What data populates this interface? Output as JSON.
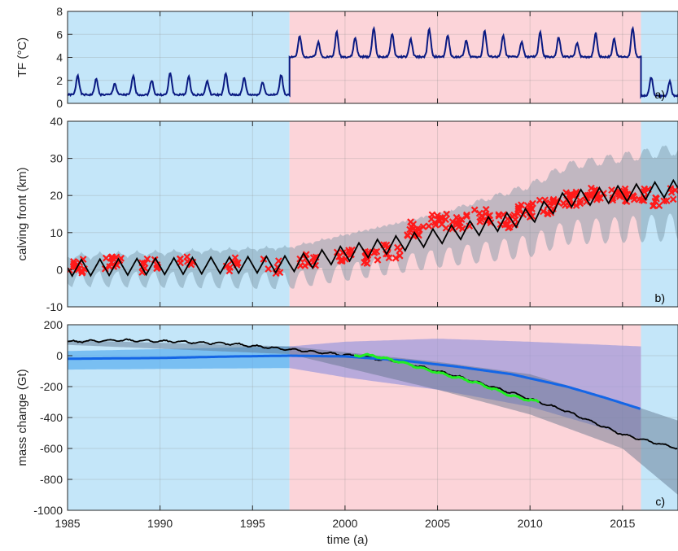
{
  "colors": {
    "blue_bg": "#c4e6f9",
    "red_bg": "#fcd4d9",
    "tf_line": "#0a1a82",
    "scatter": "#ff1a1a",
    "model_line": "#000000",
    "band_grey": "#6f8f9f",
    "blue_line": "#1466e6",
    "blue_band": "#5aaef0",
    "purple_band": "#9b98dc",
    "dark_band": "#5b6f88",
    "obs_green": "#22ee22"
  },
  "xaxis": {
    "label": "time (a)",
    "range": [
      1985,
      2018
    ],
    "ticks": [
      1985,
      1990,
      1995,
      2000,
      2005,
      2010,
      2015
    ],
    "tick_labels": [
      "1985",
      "1990",
      "1995",
      "2000",
      "2005",
      "2010",
      "2015"
    ]
  },
  "background_periods": [
    {
      "x0": 1985,
      "x1": 1997,
      "color_key": "blue_bg"
    },
    {
      "x0": 1997,
      "x1": 2016,
      "color_key": "red_bg"
    },
    {
      "x0": 2016,
      "x1": 2018,
      "color_key": "blue_bg"
    }
  ],
  "chart_data": [
    {
      "type": "line",
      "panel_label": "a)",
      "ylabel": "TF (°C)",
      "ylim": [
        0,
        8
      ],
      "yticks": [
        0,
        2,
        4,
        6,
        8
      ],
      "grid": true,
      "series": [
        {
          "role": "thermal forcing",
          "color_key": "tf_line",
          "segments": [
            {
              "x0": 1985,
              "x1": 1997,
              "base": 1.1,
              "amp": 1.1,
              "seed": 1
            },
            {
              "x0": 1997,
              "x1": 2016,
              "base": 4.4,
              "amp": 1.5,
              "seed": 2
            },
            {
              "x0": 2016,
              "x1": 2018,
              "base": 1.0,
              "amp": 1.2,
              "seed": 3
            }
          ]
        }
      ]
    },
    {
      "type": "line+scatter",
      "panel_label": "b)",
      "ylabel": "calving front (km)",
      "ylim": [
        -10,
        40
      ],
      "yticks": [
        -10,
        0,
        10,
        20,
        30,
        40
      ],
      "grid": true,
      "model_trend": [
        [
          1985,
          0.5
        ],
        [
          1997,
          1.5
        ],
        [
          2005,
          9
        ],
        [
          2010,
          14.5
        ],
        [
          2012,
          19
        ],
        [
          2016,
          21
        ],
        [
          2018,
          22
        ]
      ],
      "seasonal_amplitude": 2.2,
      "band_halfwidth": [
        [
          1985,
          4
        ],
        [
          1997,
          6
        ],
        [
          2005,
          8
        ],
        [
          2012,
          12
        ],
        [
          2018,
          14
        ]
      ],
      "observation_clusters": [
        {
          "x": 1985.5,
          "y": 1,
          "n": 14
        },
        {
          "x": 1987.5,
          "y": 2,
          "n": 14
        },
        {
          "x": 1989.5,
          "y": 1,
          "n": 10
        },
        {
          "x": 1991.5,
          "y": 1.5,
          "n": 8
        },
        {
          "x": 1994,
          "y": 1.5,
          "n": 8
        },
        {
          "x": 1996,
          "y": 1,
          "n": 6
        },
        {
          "x": 1998,
          "y": 2.5,
          "n": 10
        },
        {
          "x": 2000,
          "y": 4,
          "n": 12
        },
        {
          "x": 2001.5,
          "y": 3,
          "n": 12
        },
        {
          "x": 2002.5,
          "y": 5,
          "n": 10
        },
        {
          "x": 2003.8,
          "y": 11,
          "n": 14
        },
        {
          "x": 2005,
          "y": 13,
          "n": 14
        },
        {
          "x": 2006.3,
          "y": 13,
          "n": 14
        },
        {
          "x": 2007.5,
          "y": 14.5,
          "n": 12
        },
        {
          "x": 2008.8,
          "y": 13,
          "n": 14
        },
        {
          "x": 2009.8,
          "y": 16,
          "n": 16
        },
        {
          "x": 2011,
          "y": 17,
          "n": 16
        },
        {
          "x": 2012.3,
          "y": 19,
          "n": 18
        },
        {
          "x": 2013.5,
          "y": 20,
          "n": 18
        },
        {
          "x": 2014.8,
          "y": 20,
          "n": 16
        },
        {
          "x": 2016,
          "y": 20,
          "n": 10
        },
        {
          "x": 2017,
          "y": 18,
          "n": 8
        },
        {
          "x": 2017.8,
          "y": 20,
          "n": 6
        }
      ]
    },
    {
      "type": "line",
      "panel_label": "c)",
      "ylabel": "mass change (Gt)",
      "ylim": [
        -1000,
        200
      ],
      "yticks": [
        -1000,
        -800,
        -600,
        -400,
        -200,
        0,
        200
      ],
      "grid": true,
      "series": [
        {
          "role": "model mass change",
          "color_key": "model_line",
          "points": [
            [
              1985,
              90
            ],
            [
              1988,
              100
            ],
            [
              1991,
              90
            ],
            [
              1994,
              75
            ],
            [
              1997,
              40
            ],
            [
              2000,
              5
            ],
            [
              2003,
              -40
            ],
            [
              2006,
              -130
            ],
            [
              2009,
              -240
            ],
            [
              2012,
              -360
            ],
            [
              2015,
              -510
            ],
            [
              2016,
              -540
            ],
            [
              2018,
              -600
            ]
          ]
        },
        {
          "role": "reference mass change",
          "color_key": "blue_line",
          "points": [
            [
              1985,
              -20
            ],
            [
              1990,
              -15
            ],
            [
              1994,
              -5
            ],
            [
              1997,
              0
            ],
            [
              2000,
              -5
            ],
            [
              2003,
              -30
            ],
            [
              2006,
              -70
            ],
            [
              2009,
              -120
            ],
            [
              2012,
              -200
            ],
            [
              2014,
              -270
            ],
            [
              2016,
              -345
            ]
          ]
        },
        {
          "role": "observed mass change",
          "color_key": "obs_green",
          "points": [
            [
              2000.5,
              5
            ],
            [
              2001.5,
              0
            ],
            [
              2003,
              -40
            ],
            [
              2005,
              -110
            ],
            [
              2007,
              -170
            ],
            [
              2009,
              -260
            ],
            [
              2010.5,
              -300
            ]
          ]
        }
      ],
      "bands": [
        {
          "color_key": "blue_band",
          "x_range": [
            1985,
            1997
          ],
          "upper": [
            [
              1985,
              30
            ],
            [
              1997,
              60
            ]
          ],
          "lower": [
            [
              1985,
              -90
            ],
            [
              1997,
              -80
            ]
          ]
        },
        {
          "color_key": "purple_band",
          "x_range": [
            1997,
            2016
          ],
          "upper": [
            [
              1997,
              60
            ],
            [
              2000,
              90
            ],
            [
              2005,
              110
            ],
            [
              2010,
              90
            ],
            [
              2016,
              60
            ]
          ],
          "lower": [
            [
              1997,
              -80
            ],
            [
              2000,
              -140
            ],
            [
              2005,
              -220
            ],
            [
              2010,
              -330
            ],
            [
              2016,
              -540
            ]
          ]
        },
        {
          "color_key": "dark_band",
          "x_range": [
            1985,
            2018
          ],
          "upper": [
            [
              1985,
              100
            ],
            [
              1997,
              60
            ],
            [
              2005,
              -40
            ],
            [
              2010,
              -120
            ],
            [
              2015,
              -300
            ],
            [
              2018,
              -420
            ]
          ],
          "lower": [
            [
              1985,
              70
            ],
            [
              1997,
              10
            ],
            [
              2005,
              -220
            ],
            [
              2010,
              -380
            ],
            [
              2015,
              -600
            ],
            [
              2018,
              -900
            ]
          ]
        }
      ]
    }
  ]
}
